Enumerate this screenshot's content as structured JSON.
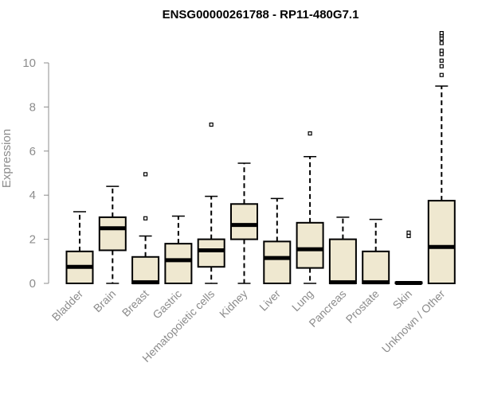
{
  "chart_data": {
    "type": "box",
    "title": "ENSG00000261788 - RP11-480G7.1",
    "xlabel": "",
    "ylabel": "Expression",
    "ylim": [
      0,
      11.6
    ],
    "yticks": [
      0,
      2,
      4,
      6,
      8,
      10
    ],
    "grid": false,
    "box_fill": "#efe8d0",
    "stroke": "#000000",
    "categories": [
      "Bladder",
      "Brain",
      "Breast",
      "Gastric",
      "Hematopoietic cells",
      "Kidney",
      "Liver",
      "Lung",
      "Pancreas",
      "Prostate",
      "Skin",
      "Unknown / Other"
    ],
    "boxes": [
      {
        "min": 0,
        "q1": 0,
        "median": 0.75,
        "q3": 1.45,
        "max": 3.25,
        "outliers": []
      },
      {
        "min": 0,
        "q1": 1.5,
        "median": 2.5,
        "q3": 3.0,
        "max": 4.4,
        "outliers": []
      },
      {
        "min": 0,
        "q1": 0,
        "median": 0.05,
        "q3": 1.2,
        "max": 2.15,
        "outliers": [
          2.95,
          4.95
        ]
      },
      {
        "min": 0,
        "q1": 0,
        "median": 1.05,
        "q3": 1.8,
        "max": 3.05,
        "outliers": []
      },
      {
        "min": 0,
        "q1": 0.75,
        "median": 1.5,
        "q3": 2.0,
        "max": 3.95,
        "outliers": [
          7.2
        ]
      },
      {
        "min": 0,
        "q1": 2.0,
        "median": 2.65,
        "q3": 3.6,
        "max": 5.45,
        "outliers": []
      },
      {
        "min": 0,
        "q1": 0,
        "median": 1.15,
        "q3": 1.9,
        "max": 3.85,
        "outliers": []
      },
      {
        "min": 0,
        "q1": 0.7,
        "median": 1.55,
        "q3": 2.75,
        "max": 5.75,
        "outliers": [
          6.8
        ]
      },
      {
        "min": 0,
        "q1": 0,
        "median": 0.05,
        "q3": 2.0,
        "max": 3.0,
        "outliers": []
      },
      {
        "min": 0,
        "q1": 0,
        "median": 0.05,
        "q3": 1.45,
        "max": 2.9,
        "outliers": []
      },
      {
        "min": 0,
        "q1": 0,
        "median": 0.02,
        "q3": 0.05,
        "max": 0.05,
        "outliers": [
          2.15,
          2.3
        ]
      },
      {
        "min": 0,
        "q1": 0,
        "median": 1.65,
        "q3": 3.75,
        "max": 8.95,
        "outliers": [
          9.45,
          9.85,
          10.1,
          10.4,
          10.55,
          10.9,
          11.1,
          11.25,
          11.35
        ]
      }
    ]
  }
}
